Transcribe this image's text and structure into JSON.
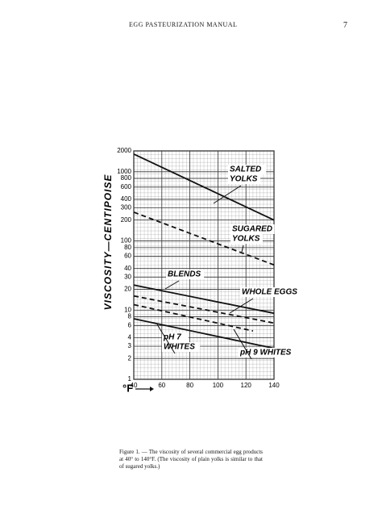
{
  "header": {
    "title": "EGG PASTEURIZATION MANUAL",
    "page_number": "7"
  },
  "chart_data": {
    "type": "line",
    "y_label": "VISCOSITY—CENTIPOISE",
    "x_label": "°F",
    "xlim": [
      40,
      140
    ],
    "xticks": [
      40,
      60,
      80,
      100,
      120,
      140
    ],
    "ylim": [
      1,
      2000
    ],
    "log_y": true,
    "grid": true,
    "yticks": [
      1,
      2,
      3,
      4,
      6,
      8,
      10,
      20,
      30,
      40,
      60,
      80,
      100,
      200,
      300,
      400,
      600,
      800,
      1000,
      2000
    ],
    "series": [
      {
        "label": [
          "SALTED",
          "YOLKS"
        ],
        "color": "#111",
        "style": "solid",
        "x": [
          40,
          140
        ],
        "values": [
          1800,
          200
        ]
      },
      {
        "label": [
          "SUGARED",
          "YOLKS"
        ],
        "color": "#111",
        "style": "dashed",
        "x": [
          40,
          140
        ],
        "values": [
          260,
          45
        ]
      },
      {
        "label": [
          "BLENDS"
        ],
        "color": "#111",
        "style": "solid",
        "x": [
          40,
          140
        ],
        "values": [
          23,
          9
        ]
      },
      {
        "label": [
          "WHOLE EGGS"
        ],
        "color": "#111",
        "style": "dashed",
        "x": [
          40,
          140
        ],
        "values": [
          16,
          6.5
        ]
      },
      {
        "label": [
          "pH 7",
          "WHITES"
        ],
        "color": "#111",
        "style": "dashed",
        "x": [
          40,
          125
        ],
        "values": [
          12,
          5
        ]
      },
      {
        "label": [
          "pH 9 WHITES"
        ],
        "color": "#111",
        "style": "solid",
        "x": [
          40,
          140
        ],
        "values": [
          7.5,
          2.8
        ]
      }
    ]
  },
  "caption": "Figure 1. — The viscosity of several commercial egg products at 40° to 140°F. (The viscosity of plain yolks is similar to that of sugared yolks.)"
}
